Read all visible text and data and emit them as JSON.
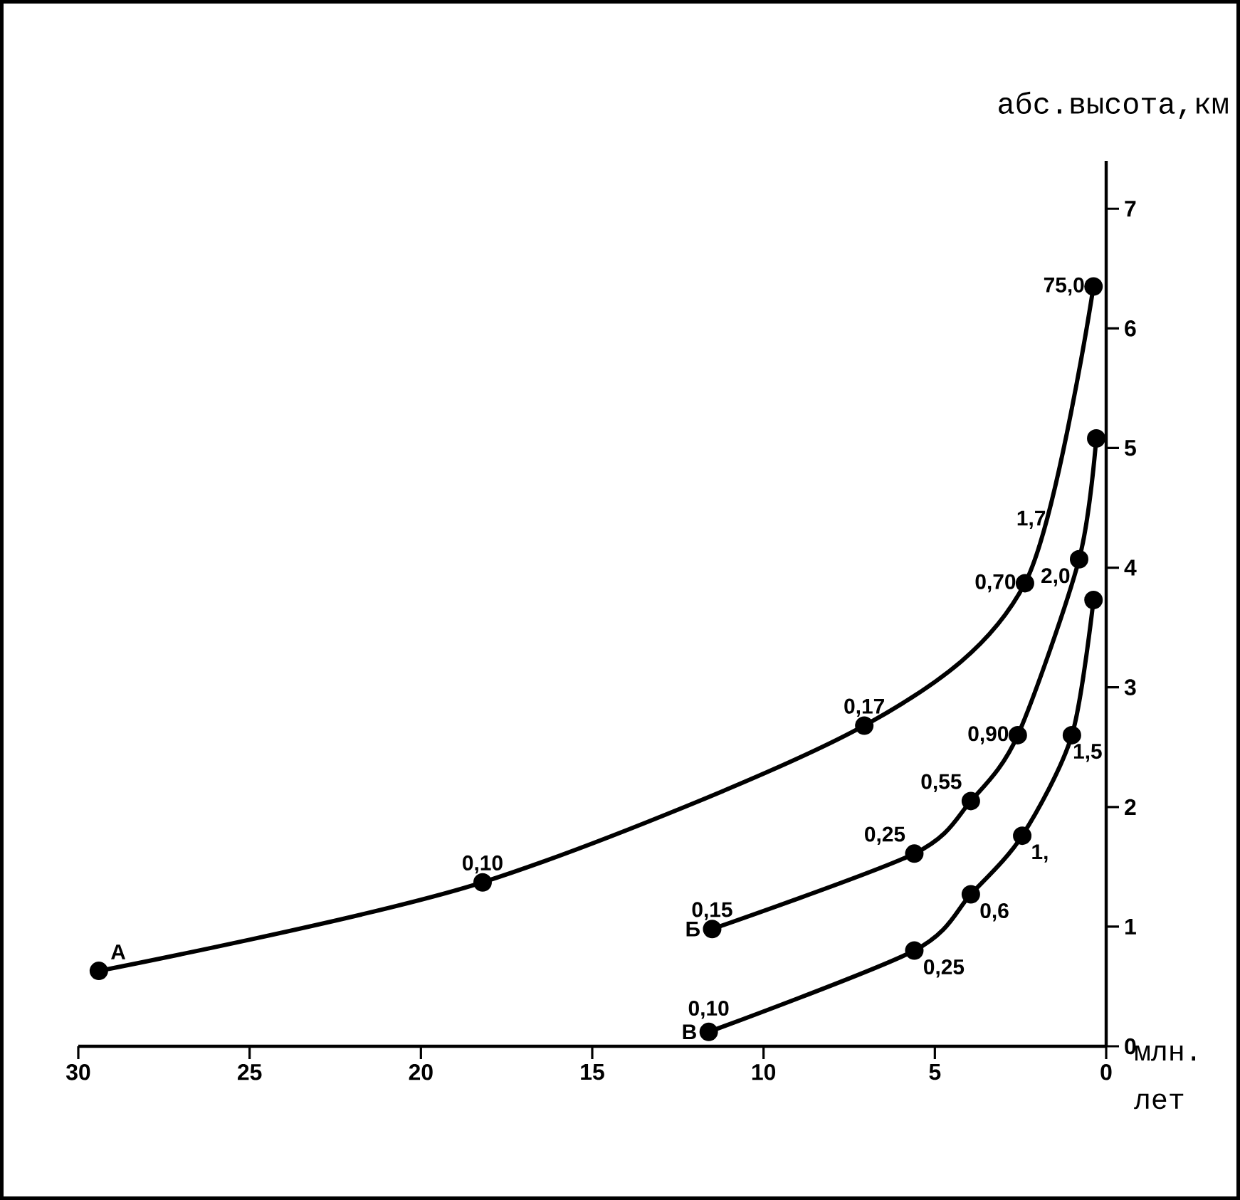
{
  "chart_data": {
    "type": "line",
    "xlabel": "млн. лет",
    "ylabel": "абс.высота,км",
    "xlim": [
      30,
      0
    ],
    "xticks": [
      30,
      25,
      20,
      15,
      10,
      5,
      0
    ],
    "ylim": [
      0,
      7.4
    ],
    "yticks": [
      0,
      1,
      2,
      3,
      4,
      5,
      6,
      7
    ],
    "grid": false,
    "marker": "circle",
    "line_style": "solid",
    "series": [
      {
        "name": "А",
        "color": "#000000",
        "x": [
          29.4,
          18.2,
          7.06,
          2.37,
          0.37
        ],
        "values": [
          0.63,
          1.37,
          2.68,
          3.87,
          6.35
        ]
      },
      {
        "name": "Б",
        "color": "#000000",
        "x": [
          11.5,
          5.6,
          3.95,
          2.58,
          0.79,
          0.29
        ],
        "values": [
          0.98,
          1.61,
          2.05,
          2.6,
          4.07,
          5.08
        ]
      },
      {
        "name": "В",
        "color": "#000000",
        "x": [
          11.6,
          5.6,
          3.95,
          2.45,
          1.0,
          0.37
        ],
        "values": [
          0.12,
          0.8,
          1.27,
          1.76,
          2.6,
          3.73
        ]
      }
    ],
    "annotations": [
      {
        "text": "0,10",
        "x": 18.2,
        "y": 1.37
      },
      {
        "text": "0,17",
        "x": 7.06,
        "y": 2.68
      },
      {
        "text": "0,70",
        "x": 2.37,
        "y": 3.87
      },
      {
        "text": "75,0",
        "x": 0.37,
        "y": 6.35
      },
      {
        "text": "1,7",
        "x": 1.5,
        "y": 4.4
      },
      {
        "text": "0,15",
        "x": 11.5,
        "y": 0.98
      },
      {
        "text": "0,25",
        "x": 5.6,
        "y": 1.61
      },
      {
        "text": "0,55",
        "x": 3.95,
        "y": 2.05
      },
      {
        "text": "0,90",
        "x": 2.58,
        "y": 2.6
      },
      {
        "text": "2,0",
        "x": 0.79,
        "y": 4.07
      },
      {
        "text": "0,10",
        "x": 11.6,
        "y": 0.12
      },
      {
        "text": "0,25",
        "x": 5.6,
        "y": 0.8
      },
      {
        "text": "0,6",
        "x": 3.95,
        "y": 1.27
      },
      {
        "text": "1,",
        "x": 2.45,
        "y": 1.76
      },
      {
        "text": "1,5",
        "x": 1.0,
        "y": 2.6
      }
    ]
  }
}
